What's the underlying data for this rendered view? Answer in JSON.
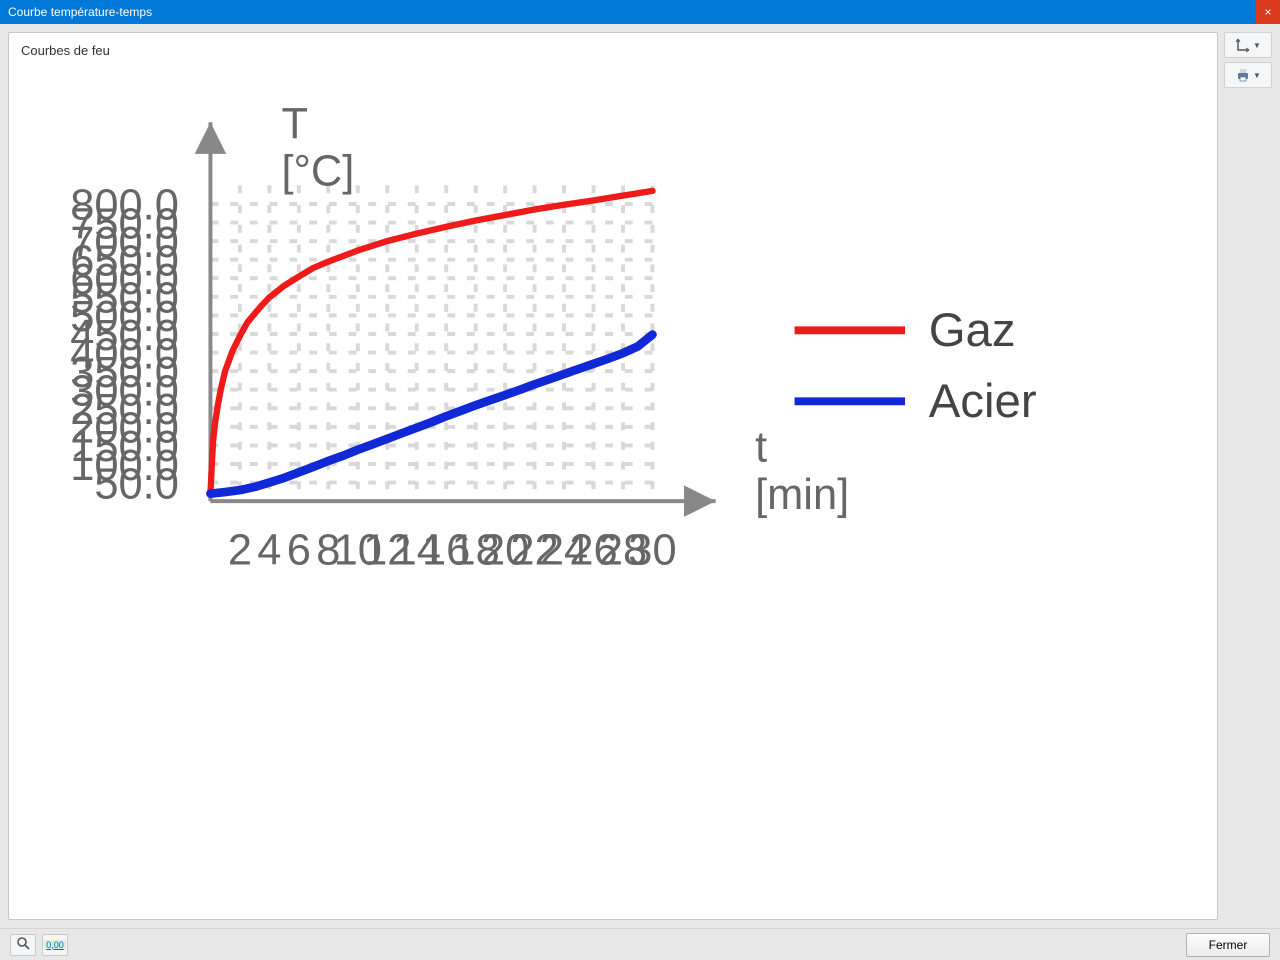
{
  "window": {
    "title": "Courbe température-temps"
  },
  "panel": {
    "title": "Courbes de feu"
  },
  "footer": {
    "close_label": "Fermer"
  },
  "toolbar": {
    "axes_tool": "axes-settings",
    "print_tool": "print"
  },
  "chart": {
    "type": "line",
    "background_color": "#ffffff",
    "grid_color": "#d9d9d9",
    "grid_dash": "2,3",
    "axis_color": "#888888",
    "text_color": "#666666",
    "x": {
      "title_lines": [
        "t",
        "[min]"
      ],
      "min": 0,
      "max": 30,
      "ticks": [
        2,
        4,
        6,
        8,
        10,
        12,
        14,
        16,
        18,
        20,
        22,
        24,
        26,
        28,
        30
      ]
    },
    "y": {
      "title_lines": [
        "T",
        "[°C]"
      ],
      "min": 0,
      "max": 850,
      "ticks": [
        50,
        100,
        150,
        200,
        250,
        300,
        350,
        400,
        450,
        500,
        550,
        600,
        650,
        700,
        750,
        800
      ],
      "tick_labels": [
        "50.0",
        "100.0",
        "150.0",
        "200.0",
        "250.0",
        "300.0",
        "350.0",
        "400.0",
        "450.0",
        "500.0",
        "550.0",
        "600.0",
        "650.0",
        "700.0",
        "750.0",
        "800.0"
      ]
    },
    "series": [
      {
        "name": "Gaz",
        "color": "#ef1a1a",
        "line_width": 1.6,
        "points": [
          [
            0.0,
            20
          ],
          [
            0.1,
            110
          ],
          [
            0.2,
            165
          ],
          [
            0.3,
            205
          ],
          [
            0.5,
            260
          ],
          [
            0.7,
            300
          ],
          [
            1.0,
            350
          ],
          [
            1.5,
            405
          ],
          [
            2.0,
            445
          ],
          [
            2.5,
            480
          ],
          [
            3.0,
            505
          ],
          [
            3.5,
            528
          ],
          [
            4.0,
            548
          ],
          [
            5.0,
            580
          ],
          [
            6.0,
            605
          ],
          [
            7.0,
            628
          ],
          [
            8.0,
            645
          ],
          [
            9.0,
            660
          ],
          [
            10.0,
            675
          ],
          [
            12.0,
            700
          ],
          [
            14.0,
            720
          ],
          [
            16.0,
            738
          ],
          [
            18.0,
            755
          ],
          [
            20.0,
            770
          ],
          [
            22.0,
            785
          ],
          [
            24.0,
            798
          ],
          [
            26.0,
            810
          ],
          [
            28.0,
            822
          ],
          [
            30.0,
            835
          ]
        ]
      },
      {
        "name": "Acier",
        "color": "#1028d6",
        "line_width": 2.2,
        "points": [
          [
            0.0,
            20
          ],
          [
            1.0,
            24
          ],
          [
            2.0,
            30
          ],
          [
            3.0,
            38
          ],
          [
            4.0,
            50
          ],
          [
            5.0,
            63
          ],
          [
            6.0,
            78
          ],
          [
            7.0,
            92
          ],
          [
            8.0,
            108
          ],
          [
            9.0,
            122
          ],
          [
            10.0,
            138
          ],
          [
            11.0,
            153
          ],
          [
            12.0,
            168
          ],
          [
            13.0,
            183
          ],
          [
            14.0,
            198
          ],
          [
            15.0,
            213
          ],
          [
            16.0,
            228
          ],
          [
            17.0,
            243
          ],
          [
            18.0,
            258
          ],
          [
            19.0,
            272
          ],
          [
            20.0,
            286
          ],
          [
            21.0,
            300
          ],
          [
            22.0,
            314
          ],
          [
            23.0,
            328
          ],
          [
            24.0,
            342
          ],
          [
            25.0,
            356
          ],
          [
            26.0,
            370
          ],
          [
            27.0,
            384
          ],
          [
            28.0,
            398
          ],
          [
            29.0,
            416
          ],
          [
            30.0,
            448
          ]
        ]
      }
    ],
    "legend": {
      "position": "right"
    }
  }
}
